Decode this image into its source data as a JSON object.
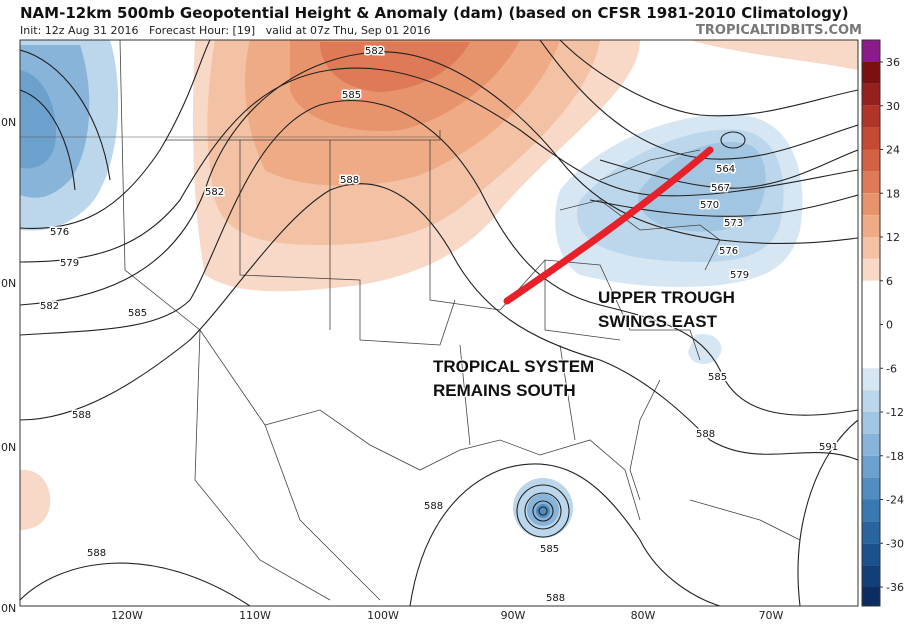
{
  "header": {
    "title": "NAM-12km 500mb Geopotential Height & Anomaly (dam) (based on CFSR 1981-2010 Climatology)",
    "subtitle": "Init: 12z Aug 31 2016   Forecast Hour: [19]   valid at 07z Thu, Sep 01 2016",
    "site": "TROPICALTIDBITS.COM"
  },
  "colorbar": {
    "ticks": [
      36,
      30,
      24,
      18,
      12,
      6,
      0,
      -6,
      -12,
      -18,
      -24,
      -30,
      -36
    ],
    "colors": [
      "#8b1a8b",
      "#7a1010",
      "#962020",
      "#b03428",
      "#c44a34",
      "#d36244",
      "#de7a56",
      "#e7936c",
      "#eeab86",
      "#f3c2a4",
      "#f8d8c6",
      "#ffffff",
      "#ffffff",
      "#ffffff",
      "#ffffff",
      "#d6e7f3",
      "#bcd7eb",
      "#a2c6e2",
      "#87b4d8",
      "#6ca1cd",
      "#518dc0",
      "#3a79b0",
      "#28659f",
      "#1b528c",
      "#133f78",
      "#0c2c62"
    ]
  },
  "map": {
    "longitude_labels": [
      "120W",
      "110W",
      "100W",
      "90W",
      "80W",
      "70W"
    ],
    "latitude_labels": [
      "0N",
      "0N",
      "0N",
      "0N"
    ],
    "contour_labels": [
      582,
      585,
      588,
      582,
      576,
      579,
      582,
      585,
      588,
      588,
      588,
      585,
      588,
      564,
      567,
      570,
      573,
      576,
      579,
      585,
      588,
      591
    ]
  },
  "annotations": [
    "UPPER TROUGH",
    "SWINGS EAST",
    "TROPICAL SYSTEM",
    "REMAINS SOUTH"
  ]
}
